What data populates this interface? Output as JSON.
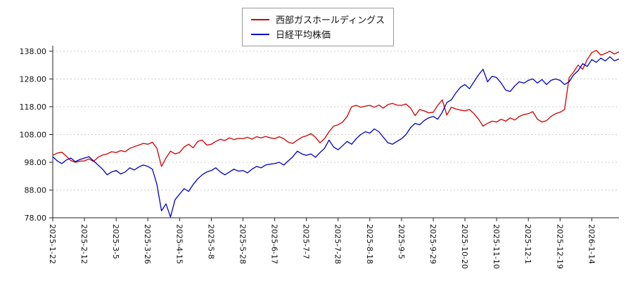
{
  "chart_data": {
    "type": "line",
    "title": "",
    "legend_position": "top-center",
    "grid": true,
    "ylim": [
      78,
      140
    ],
    "y_ticks": [
      78,
      88,
      98,
      108,
      118,
      128,
      138
    ],
    "y_tick_labels": [
      "78.00",
      "88.00",
      "98.00",
      "108.00",
      "118.00",
      "128.00",
      "138.00"
    ],
    "tick_step": 7,
    "x_tick_labels": [
      "2025-1-22",
      "2025-2-12",
      "2025-3-5",
      "2025-3-26",
      "2025-4-15",
      "2025-5-8",
      "2025-5-28",
      "2025-6-17",
      "2025-7-7",
      "2025-7-28",
      "2025-8-18",
      "2025-9-5",
      "2025-9-29",
      "2025-10-20",
      "2025-11-10",
      "2025-12-1",
      "2025-12-19",
      "2026-1-14"
    ],
    "series": [
      {
        "name": "西部ガスホールディングス",
        "color": "#cc0000",
        "values": [
          100.5,
          101.3,
          101.6,
          100.2,
          98.6,
          98.0,
          98.4,
          98.5,
          99.2,
          98.3,
          99.8,
          100.6,
          101.0,
          101.8,
          101.5,
          102.2,
          101.8,
          103.0,
          103.6,
          104.2,
          104.8,
          104.5,
          105.2,
          103.0,
          96.5,
          99.5,
          102.0,
          101.0,
          101.5,
          103.5,
          104.5,
          103.2,
          105.5,
          106.0,
          104.2,
          104.5,
          105.5,
          106.3,
          105.8,
          106.8,
          106.2,
          106.6,
          106.5,
          107.0,
          106.3,
          107.2,
          106.8,
          107.3,
          106.8,
          106.5,
          107.2,
          106.5,
          105.2,
          104.8,
          106.0,
          107.0,
          107.5,
          108.3,
          107.0,
          105.0,
          106.5,
          109.0,
          111.0,
          111.5,
          112.5,
          114.5,
          118.0,
          118.5,
          117.8,
          118.2,
          118.5,
          117.8,
          118.6,
          117.5,
          118.8,
          119.2,
          118.6,
          118.5,
          119.0,
          117.5,
          114.8,
          117.0,
          116.5,
          115.8,
          116.0,
          118.5,
          120.5,
          115.0,
          117.8,
          117.2,
          116.8,
          116.5,
          117.0,
          115.5,
          113.5,
          111.0,
          112.0,
          112.8,
          112.5,
          113.5,
          112.8,
          114.0,
          113.2,
          114.5,
          115.2,
          115.5,
          116.2,
          113.5,
          112.5,
          113.0,
          114.5,
          115.5,
          116.0,
          117.0,
          128.5,
          130.5,
          133.0,
          131.5,
          135.0,
          137.5,
          138.3,
          136.6,
          137.2,
          138.0,
          137.0,
          137.8
        ]
      },
      {
        "name": "日経平均株価",
        "color": "#0000bb",
        "values": [
          100.0,
          98.5,
          97.5,
          98.8,
          99.5,
          98.2,
          99.0,
          99.5,
          100.0,
          98.5,
          97.0,
          95.5,
          93.5,
          94.5,
          95.0,
          93.8,
          94.5,
          96.0,
          95.2,
          96.3,
          97.0,
          96.5,
          95.5,
          90.0,
          80.5,
          83.0,
          78.3,
          84.5,
          86.5,
          88.5,
          87.5,
          90.0,
          92.0,
          93.5,
          94.5,
          95.0,
          96.0,
          94.5,
          93.5,
          94.5,
          95.5,
          94.8,
          95.0,
          94.2,
          95.5,
          96.5,
          96.0,
          97.0,
          97.3,
          97.5,
          98.0,
          97.0,
          98.5,
          100.0,
          102.0,
          101.0,
          100.5,
          101.0,
          99.8,
          101.5,
          103.0,
          106.0,
          103.5,
          102.5,
          104.0,
          105.5,
          104.5,
          106.5,
          108.0,
          109.0,
          108.5,
          110.0,
          109.0,
          107.0,
          105.0,
          104.5,
          105.5,
          106.5,
          108.0,
          110.5,
          112.0,
          111.5,
          113.0,
          114.0,
          114.5,
          113.5,
          116.0,
          119.5,
          120.5,
          123.0,
          125.0,
          126.0,
          124.5,
          127.0,
          129.5,
          131.5,
          127.0,
          129.0,
          128.5,
          126.5,
          124.0,
          123.5,
          125.5,
          127.0,
          126.5,
          127.5,
          128.0,
          126.5,
          127.8,
          126.0,
          127.5,
          128.0,
          127.5,
          126.0,
          127.0,
          129.5,
          131.0,
          133.5,
          132.5,
          135.0,
          134.0,
          135.5,
          134.5,
          136.0,
          134.5,
          135.2
        ]
      }
    ],
    "axis_color": "#222222",
    "gridline_color": "#cccccc"
  }
}
